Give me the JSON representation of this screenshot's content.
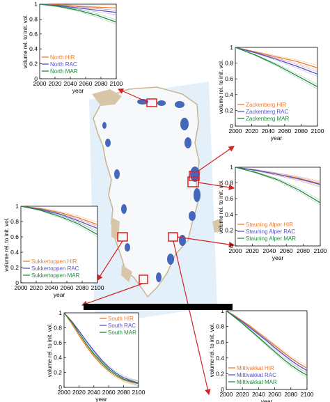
{
  "colors": {
    "hir": "#f07a2a",
    "rac": "#5a4fc4",
    "mar": "#1e8a3a",
    "ice": "#e3f0fa",
    "glacier": "#4466bb",
    "land": "#d8c6a8",
    "box": "#e02020",
    "arrow": "#d42020"
  },
  "chart_data": [
    {
      "id": "north",
      "type": "line",
      "x": [
        2000,
        2025,
        2050,
        2075,
        2100
      ],
      "xticks": [
        2000,
        2020,
        2040,
        2060,
        2080,
        2100
      ],
      "yticks": [
        "0",
        "0.2",
        "0.4",
        "0.6",
        "0.8",
        "1"
      ],
      "ylim": [
        0,
        1
      ],
      "xlabel": "year",
      "ylabel": "volume rel. to init. vol.",
      "legend": "bottom-left",
      "series": [
        {
          "name": "North HIR",
          "color": "hir",
          "values": [
            1.0,
            0.99,
            0.97,
            0.96,
            0.95
          ]
        },
        {
          "name": "North RAC",
          "color": "rac",
          "values": [
            1.0,
            0.98,
            0.95,
            0.92,
            0.89
          ]
        },
        {
          "name": "North MAR",
          "color": "mar",
          "values": [
            1.0,
            0.97,
            0.92,
            0.85,
            0.76
          ]
        }
      ]
    },
    {
      "id": "zackenberg",
      "type": "line",
      "x": [
        2000,
        2025,
        2050,
        2075,
        2100
      ],
      "xticks": [
        2000,
        2020,
        2040,
        2060,
        2080,
        2100
      ],
      "yticks": [
        "0",
        "0.2",
        "0.4",
        "0.6",
        "0.8",
        "1"
      ],
      "ylim": [
        0,
        1
      ],
      "xlabel": "year",
      "ylabel": "volume rel. to init. vol.",
      "legend": "bottom-left",
      "series": [
        {
          "name": "Zackenberg HIR",
          "color": "hir",
          "values": [
            1.0,
            0.94,
            0.88,
            0.82,
            0.74
          ]
        },
        {
          "name": "Zackenberg RAC",
          "color": "rac",
          "values": [
            1.0,
            0.93,
            0.85,
            0.76,
            0.66
          ]
        },
        {
          "name": "Zackenberg MAR",
          "color": "mar",
          "values": [
            1.0,
            0.9,
            0.78,
            0.64,
            0.5
          ]
        }
      ]
    },
    {
      "id": "stauning",
      "type": "line",
      "x": [
        2000,
        2025,
        2050,
        2075,
        2100
      ],
      "xticks": [
        2000,
        2020,
        2040,
        2060,
        2080,
        2100
      ],
      "yticks": [
        "0",
        "0.2",
        "0.4",
        "0.6",
        "0.8",
        "1"
      ],
      "ylim": [
        0,
        1
      ],
      "xlabel": "year",
      "ylabel": "volume rel. to init. vol.",
      "legend": "bottom-left",
      "series": [
        {
          "name": "Stauning Alper HIR",
          "color": "hir",
          "values": [
            1.0,
            0.96,
            0.91,
            0.86,
            0.79
          ]
        },
        {
          "name": "Stauning Alper RAC",
          "color": "rac",
          "values": [
            1.0,
            0.96,
            0.91,
            0.85,
            0.78
          ]
        },
        {
          "name": "Stauning Alper MAR",
          "color": "mar",
          "values": [
            1.0,
            0.93,
            0.84,
            0.71,
            0.55
          ]
        }
      ]
    },
    {
      "id": "sukkertoppen",
      "type": "line",
      "x": [
        2000,
        2025,
        2050,
        2075,
        2100
      ],
      "xticks": [
        2000,
        2020,
        2040,
        2060,
        2080,
        2100
      ],
      "yticks": [
        "0",
        "0.2",
        "0.4",
        "0.6",
        "0.8",
        "1"
      ],
      "ylim": [
        0,
        1
      ],
      "xlabel": "year",
      "ylabel": "volume rel. to init. vol.",
      "legend": "bottom-left",
      "series": [
        {
          "name": "Sukkertoppen HIR",
          "color": "hir",
          "values": [
            1.0,
            0.97,
            0.92,
            0.85,
            0.76
          ]
        },
        {
          "name": "Sukkertoppen RAC",
          "color": "rac",
          "values": [
            1.0,
            0.96,
            0.9,
            0.81,
            0.71
          ]
        },
        {
          "name": "Sukkertoppen MAR",
          "color": "mar",
          "values": [
            1.0,
            0.95,
            0.87,
            0.77,
            0.63
          ]
        }
      ]
    },
    {
      "id": "south",
      "type": "line",
      "x": [
        2000,
        2010,
        2020,
        2030,
        2040,
        2050,
        2060,
        2070,
        2080,
        2090,
        2100
      ],
      "xticks": [
        2000,
        2020,
        2040,
        2060,
        2080,
        2100
      ],
      "yticks": [
        "0",
        "0.2",
        "0.4",
        "0.6",
        "0.8",
        "1"
      ],
      "ylim": [
        0,
        1
      ],
      "xlabel": "year",
      "ylabel": "volume rel. to init. vol.",
      "legend": "top-right",
      "series": [
        {
          "name": "South HIR",
          "color": "hir",
          "values": [
            1.0,
            0.86,
            0.7,
            0.55,
            0.42,
            0.31,
            0.22,
            0.15,
            0.1,
            0.07,
            0.05
          ]
        },
        {
          "name": "South RAC",
          "color": "rac",
          "values": [
            1.0,
            0.89,
            0.76,
            0.62,
            0.49,
            0.37,
            0.27,
            0.19,
            0.13,
            0.09,
            0.06
          ]
        },
        {
          "name": "South MAR",
          "color": "mar",
          "values": [
            1.0,
            0.88,
            0.73,
            0.58,
            0.45,
            0.34,
            0.24,
            0.17,
            0.11,
            0.08,
            0.05
          ]
        }
      ]
    },
    {
      "id": "mittivakkat",
      "type": "line",
      "x": [
        2000,
        2010,
        2020,
        2030,
        2040,
        2050,
        2060,
        2070,
        2080,
        2090,
        2100
      ],
      "xticks": [
        2000,
        2020,
        2040,
        2060,
        2080,
        2100
      ],
      "yticks": [
        "0",
        "0.2",
        "0.4",
        "0.6",
        "0.8",
        "1"
      ],
      "ylim": [
        0,
        1
      ],
      "xlabel": "year",
      "ylabel": "volume rel. to init. vol.",
      "legend": "bottom-left",
      "series": [
        {
          "name": "Mittivakkat HIR",
          "color": "hir",
          "values": [
            1.0,
            0.94,
            0.87,
            0.8,
            0.72,
            0.64,
            0.56,
            0.48,
            0.4,
            0.33,
            0.27
          ]
        },
        {
          "name": "Mittivakkat RAC",
          "color": "rac",
          "values": [
            1.0,
            0.93,
            0.86,
            0.78,
            0.7,
            0.62,
            0.53,
            0.45,
            0.37,
            0.3,
            0.24
          ]
        },
        {
          "name": "Mittivakkat MAR",
          "color": "mar",
          "values": [
            1.0,
            0.92,
            0.84,
            0.75,
            0.66,
            0.57,
            0.48,
            0.39,
            0.31,
            0.24,
            0.18
          ]
        }
      ]
    }
  ]
}
